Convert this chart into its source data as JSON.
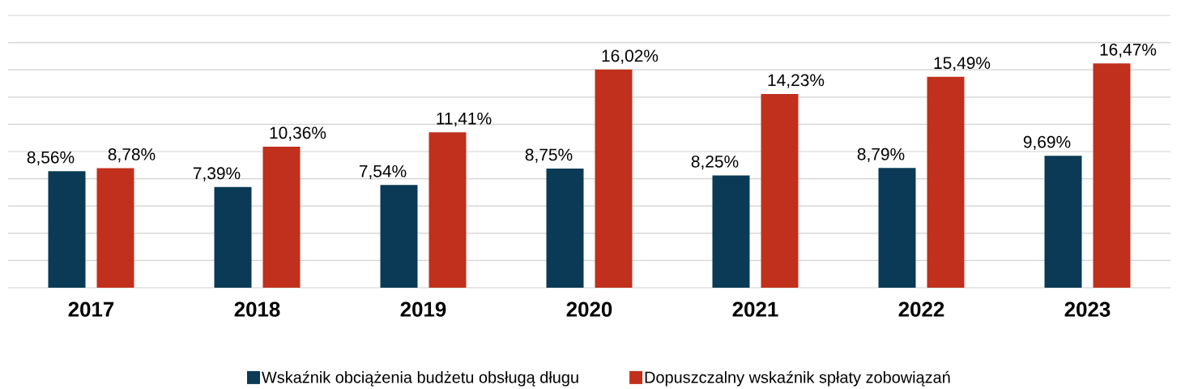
{
  "chart_data": {
    "type": "bar",
    "categories": [
      "2017",
      "2018",
      "2019",
      "2020",
      "2021",
      "2022",
      "2023"
    ],
    "series": [
      {
        "name": "Wskaźnik obciążenia budżetu obsługą długu",
        "color": "#0a3a55",
        "values": [
          8.56,
          7.39,
          7.54,
          8.75,
          8.25,
          8.79,
          9.69
        ],
        "value_labels": [
          "8,56%",
          "7,39%",
          "7,54%",
          "8,75%",
          "8,25%",
          "8,79%",
          "9,69%"
        ]
      },
      {
        "name": "Dopuszczalny wskaźnik spłaty zobowiązań",
        "color": "#c0301c",
        "values": [
          8.78,
          10.36,
          11.41,
          16.02,
          14.23,
          15.49,
          16.47
        ],
        "value_labels": [
          "8,78%",
          "10,36%",
          "11,41%",
          "16,02%",
          "14,23%",
          "15,49%",
          "16,47%"
        ]
      }
    ],
    "ylim": [
      0,
      20
    ],
    "yticks": [
      0,
      2,
      4,
      6,
      8,
      10,
      12,
      14,
      16,
      18,
      20
    ],
    "tick_labels": "x",
    "grid": "y",
    "legend": "bottom"
  }
}
